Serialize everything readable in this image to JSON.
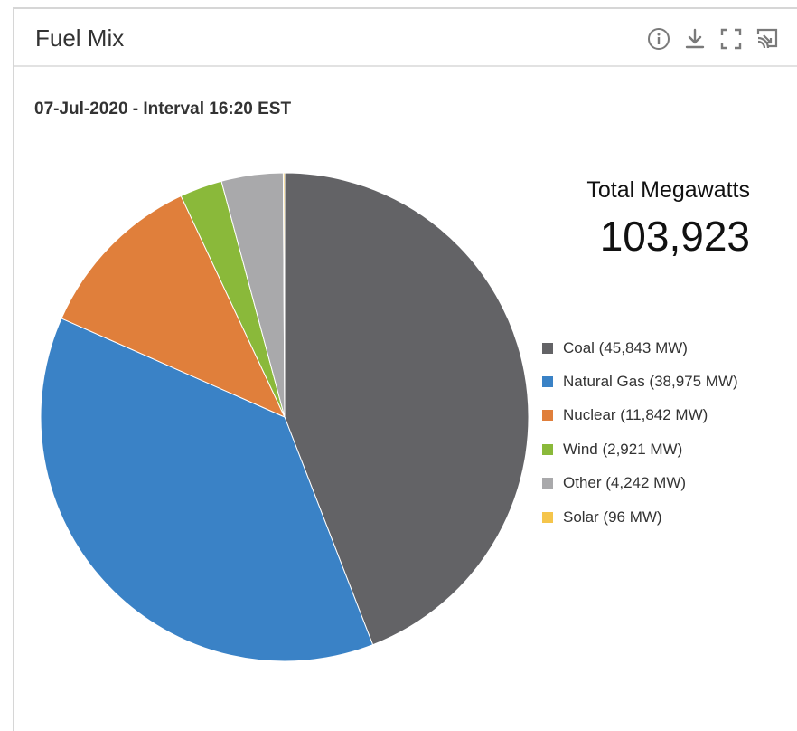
{
  "panel": {
    "title": "Fuel Mix",
    "icons": [
      "info-icon",
      "download-icon",
      "fullscreen-icon",
      "cast-icon"
    ]
  },
  "chart_data": {
    "type": "pie",
    "subtitle": "07-Jul-2020 - Interval 16:20 EST",
    "total_label": "Total Megawatts",
    "total_value": "103,923",
    "legend_placement": "right",
    "slices": [
      {
        "name": "Coal",
        "value": 45843,
        "label": "Coal (45,843 MW)",
        "color": "#636366"
      },
      {
        "name": "Natural Gas",
        "value": 38975,
        "label": "Natural Gas (38,975 MW)",
        "color": "#3a82c6"
      },
      {
        "name": "Nuclear",
        "value": 11842,
        "label": "Nuclear (11,842 MW)",
        "color": "#e07f3b"
      },
      {
        "name": "Wind",
        "value": 2921,
        "label": "Wind (2,921 MW)",
        "color": "#8ab93a"
      },
      {
        "name": "Other",
        "value": 4242,
        "label": "Other (4,242 MW)",
        "color": "#a9a9ab"
      },
      {
        "name": "Solar",
        "value": 96,
        "label": "Solar (96 MW)",
        "color": "#f5c54b"
      }
    ]
  }
}
